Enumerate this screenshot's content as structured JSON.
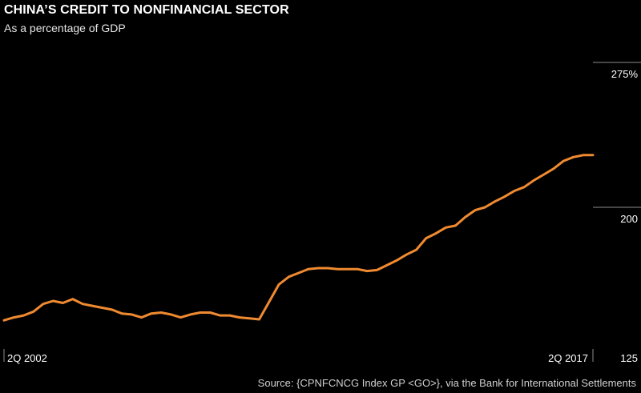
{
  "chart_data": {
    "type": "line",
    "title": "CHINA’S CREDIT TO NONFINANCIAL SECTOR",
    "subtitle": "As a percentage of GDP",
    "xlabel": "",
    "ylabel": "",
    "x_tick_labels": [
      "2Q 2002",
      "2Q 2017"
    ],
    "y_tick_labels": [
      "275%",
      "200",
      "125"
    ],
    "ylim": [
      125,
      275
    ],
    "grid": false,
    "source": "Source: {CPNFCNCG Index GP <GO>}, via the Bank for International Settlements",
    "line_color": "#f08a30",
    "series": [
      {
        "x": [
          "2Q 2002",
          "3Q 2002",
          "4Q 2002",
          "1Q 2003",
          "2Q 2003",
          "3Q 2003",
          "4Q 2003",
          "1Q 2004",
          "2Q 2004",
          "3Q 2004",
          "4Q 2004",
          "1Q 2005",
          "2Q 2005",
          "3Q 2005",
          "4Q 2005",
          "1Q 2006",
          "2Q 2006",
          "3Q 2006",
          "4Q 2006",
          "1Q 2007",
          "2Q 2007",
          "3Q 2007",
          "4Q 2007",
          "1Q 2008",
          "2Q 2008",
          "3Q 2008",
          "4Q 2008",
          "1Q 2009",
          "2Q 2009",
          "3Q 2009",
          "4Q 2009",
          "1Q 2010",
          "2Q 2010",
          "3Q 2010",
          "4Q 2010",
          "1Q 2011",
          "2Q 2011",
          "3Q 2011",
          "4Q 2011",
          "1Q 2012",
          "2Q 2012",
          "3Q 2012",
          "4Q 2012",
          "1Q 2013",
          "2Q 2013",
          "3Q 2013",
          "4Q 2013",
          "1Q 2014",
          "2Q 2014",
          "3Q 2014",
          "4Q 2014",
          "1Q 2015",
          "2Q 2015",
          "3Q 2015",
          "4Q 2015",
          "1Q 2016",
          "2Q 2016",
          "3Q 2016",
          "4Q 2016",
          "1Q 2017",
          "2Q 2017"
        ],
        "values": [
          141.5,
          143,
          144,
          146,
          150,
          151.5,
          150.5,
          152.5,
          150,
          149,
          148,
          147,
          145,
          144.5,
          143,
          145,
          145.5,
          144.5,
          143,
          144.5,
          145.5,
          145.5,
          144,
          144,
          143,
          142.5,
          142,
          151,
          160,
          164,
          166,
          168,
          168.5,
          168.5,
          168,
          168,
          168,
          167,
          167.5,
          170,
          172.5,
          175.5,
          178,
          184,
          186.5,
          189.5,
          190.5,
          195,
          198.5,
          200,
          203,
          205.5,
          208.5,
          210.5,
          214,
          217,
          220,
          224,
          226,
          227,
          227
        ]
      }
    ]
  }
}
